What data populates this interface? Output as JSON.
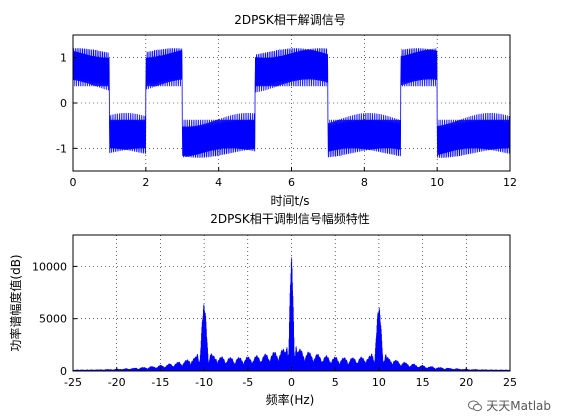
{
  "chart_data": [
    {
      "type": "line",
      "title": "2DPSK相干解调信号",
      "xlabel": "时间t/s",
      "ylabel": "",
      "xlim": [
        0,
        12
      ],
      "ylim": [
        -1.5,
        1.5
      ],
      "xticks": [
        "0",
        "2",
        "4",
        "6",
        "8",
        "10",
        "12"
      ],
      "yticks": [
        "-1",
        "0",
        "1"
      ],
      "grid": true,
      "series": [
        {
          "color": "#0000ff",
          "bits_level": [
            1,
            -1,
            1,
            -1,
            -1,
            1,
            1,
            -1,
            -1,
            1,
            -1,
            -1
          ],
          "bit_duration_s": 1
        }
      ]
    },
    {
      "type": "line",
      "title": "2DPSK相干调制信号幅频特性",
      "xlabel": "频率(Hz)",
      "ylabel": "功率谱幅度值(dB)",
      "xlim": [
        -25,
        25
      ],
      "ylim": [
        0,
        13000
      ],
      "xticks": [
        "-25",
        "-20",
        "-15",
        "-10",
        "-5",
        "0",
        "5",
        "10",
        "15",
        "20",
        "25"
      ],
      "yticks": [
        "0",
        "5000",
        "10000"
      ],
      "grid": true,
      "series": [
        {
          "color": "#0000ff",
          "peaks": [
            {
              "x": -10,
              "y": 7000
            },
            {
              "x": 0,
              "y": 12600
            },
            {
              "x": 10,
              "y": 6700
            }
          ]
        }
      ]
    }
  ],
  "watermark": {
    "text": "天天Matlab",
    "icon": "wechat-icon"
  }
}
